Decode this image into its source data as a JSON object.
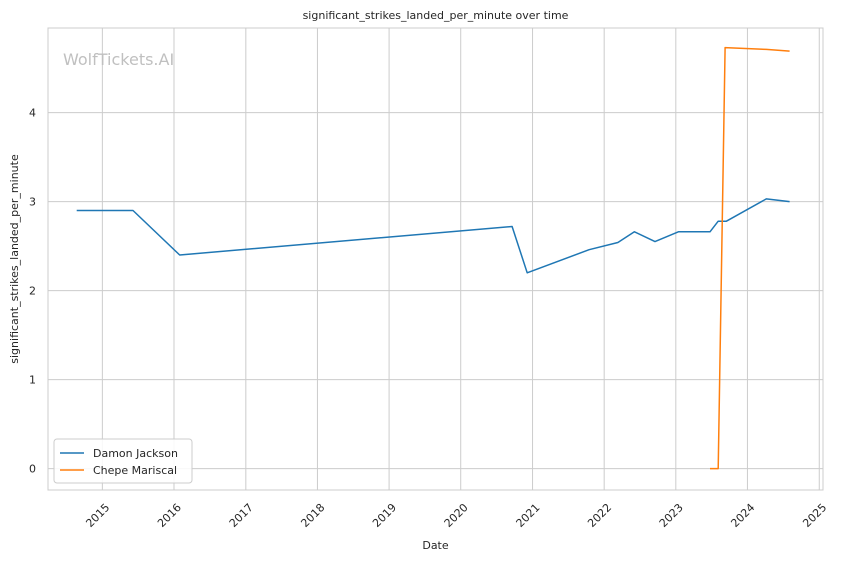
{
  "chart_data": {
    "type": "line",
    "title": "significant_strikes_landed_per_minute over time",
    "xlabel": "Date",
    "ylabel": "significant_strikes_landed_per_minute",
    "watermark": "WolfTickets.AI",
    "x_range": [
      "2014-03-30",
      "2025-01-20"
    ],
    "ylim": [
      -0.24,
      4.95
    ],
    "x_ticks": [
      "2015-01-01",
      "2016-01-01",
      "2017-01-01",
      "2018-01-01",
      "2019-01-01",
      "2020-01-01",
      "2021-01-01",
      "2022-01-01",
      "2023-01-01",
      "2024-01-01",
      "2025-01-01"
    ],
    "x_tick_labels": [
      "2015",
      "2016",
      "2017",
      "2018",
      "2019",
      "2020",
      "2021",
      "2022",
      "2023",
      "2024",
      "2025"
    ],
    "y_ticks": [
      0,
      1,
      2,
      3,
      4
    ],
    "y_tick_labels": [
      "0",
      "1",
      "2",
      "3",
      "4"
    ],
    "grid": true,
    "legend_position": "lower-left",
    "series": [
      {
        "name": "Damon Jackson",
        "color": "#1f77b4",
        "points": [
          [
            "2014-08-23",
            2.9
          ],
          [
            "2015-06-06",
            2.9
          ],
          [
            "2016-01-30",
            2.4
          ],
          [
            "2020-09-19",
            2.72
          ],
          [
            "2020-12-05",
            2.2
          ],
          [
            "2021-10-16",
            2.46
          ],
          [
            "2022-03-12",
            2.54
          ],
          [
            "2022-06-04",
            2.66
          ],
          [
            "2022-09-17",
            2.55
          ],
          [
            "2023-01-14",
            2.66
          ],
          [
            "2023-06-24",
            2.66
          ],
          [
            "2023-08-05",
            2.78
          ],
          [
            "2023-09-16",
            2.78
          ],
          [
            "2024-04-06",
            3.03
          ],
          [
            "2024-08-03",
            3.0
          ]
        ]
      },
      {
        "name": "Chepe Mariscal",
        "color": "#ff7f0e",
        "points": [
          [
            "2023-06-24",
            0.0
          ],
          [
            "2023-08-05",
            0.0
          ],
          [
            "2023-09-09",
            4.73
          ],
          [
            "2024-04-06",
            4.71
          ],
          [
            "2024-08-03",
            4.69
          ]
        ]
      }
    ]
  }
}
